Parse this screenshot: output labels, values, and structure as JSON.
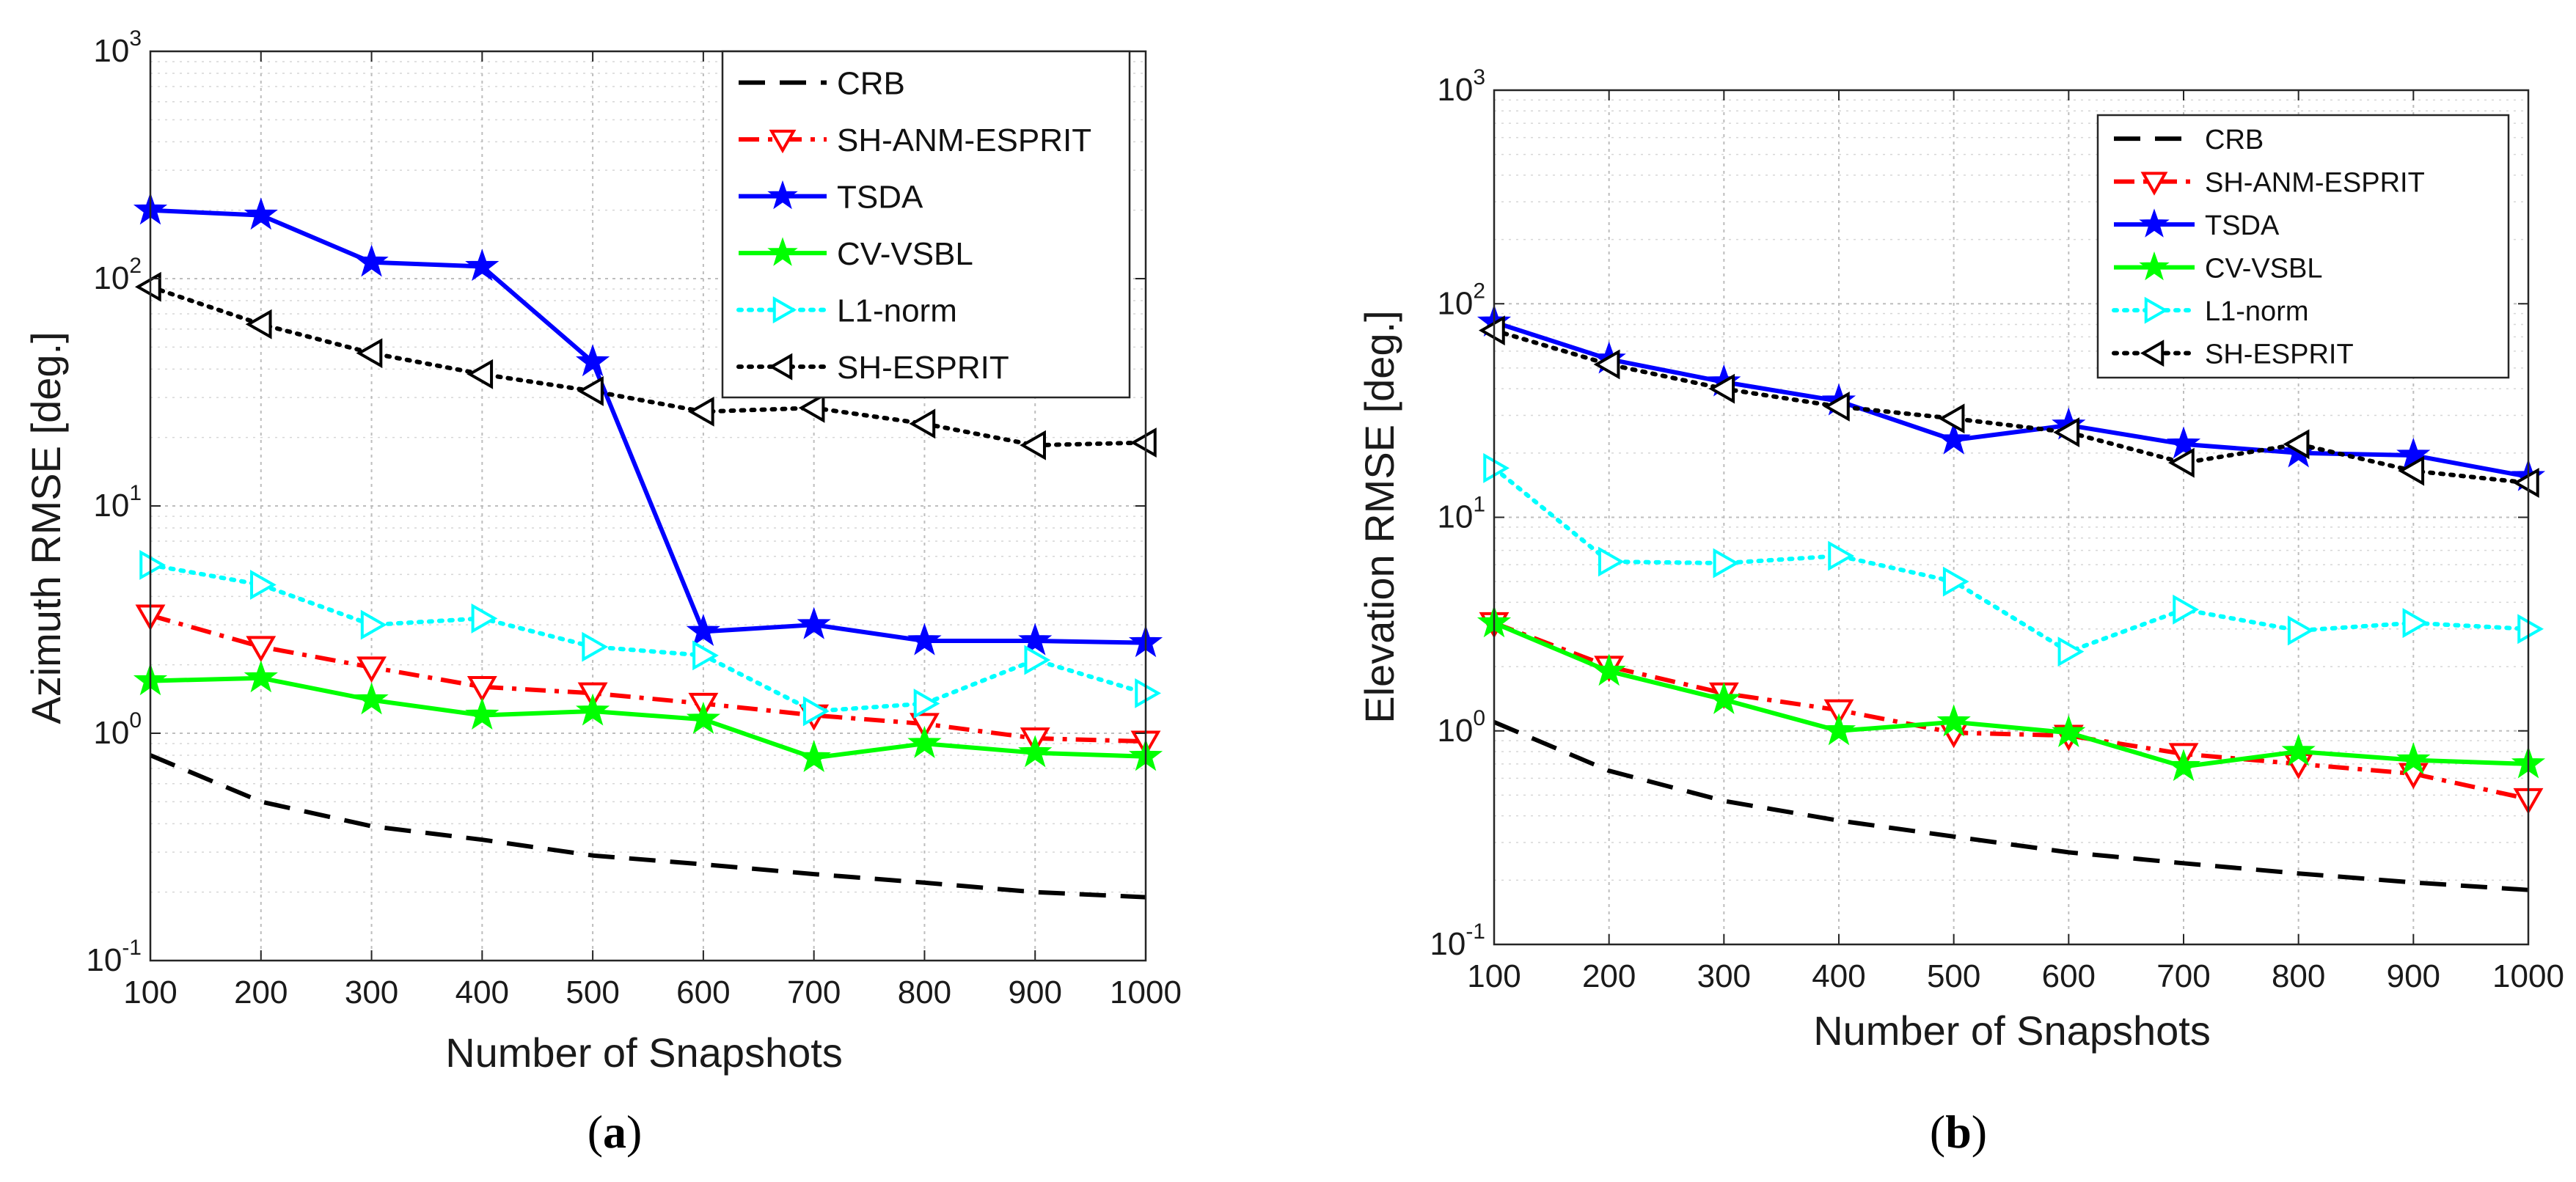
{
  "chart_data": [
    {
      "type": "line",
      "panel": "a",
      "caption": "a",
      "title": "",
      "xlabel": "Number of Snapshots",
      "ylabel": "Azimuth RMSE [deg.]",
      "yscale": "log",
      "xlim": [
        100,
        1000
      ],
      "ylim": [
        0.1,
        1000
      ],
      "xticks": [
        100,
        200,
        300,
        400,
        500,
        600,
        700,
        800,
        900,
        1000
      ],
      "yticks": [
        {
          "base": "10",
          "exp": "-1",
          "value": 0.1
        },
        {
          "base": "10",
          "exp": "0",
          "value": 1
        },
        {
          "base": "10",
          "exp": "1",
          "value": 10
        },
        {
          "base": "10",
          "exp": "2",
          "value": 100
        },
        {
          "base": "10",
          "exp": "3",
          "value": 1000
        }
      ],
      "grid": true,
      "legend_position": "top-right",
      "x": [
        100,
        200,
        300,
        400,
        500,
        600,
        700,
        800,
        900,
        1000
      ],
      "series": [
        {
          "name": "CRB",
          "color": "#000000",
          "style": "dashed",
          "marker": "none",
          "values": [
            0.8,
            0.5,
            0.39,
            0.34,
            0.29,
            0.265,
            0.24,
            0.22,
            0.2,
            0.19
          ]
        },
        {
          "name": "SH-ANM-ESPRIT",
          "color": "#ff0000",
          "style": "dashdot",
          "marker": "triangle-down",
          "values": [
            3.3,
            2.4,
            1.95,
            1.6,
            1.5,
            1.35,
            1.2,
            1.1,
            0.95,
            0.92
          ]
        },
        {
          "name": "TSDA",
          "color": "#0000ff",
          "style": "solid",
          "marker": "star",
          "values": [
            200,
            190,
            118,
            113,
            43,
            2.8,
            3.0,
            2.55,
            2.55,
            2.5
          ]
        },
        {
          "name": "CV-VSBL",
          "color": "#00ff00",
          "style": "solid",
          "marker": "star",
          "values": [
            1.7,
            1.75,
            1.4,
            1.2,
            1.25,
            1.15,
            0.78,
            0.9,
            0.82,
            0.79
          ]
        },
        {
          "name": "L1-norm",
          "color": "#00ffff",
          "style": "dotted",
          "marker": "triangle-right",
          "values": [
            5.5,
            4.5,
            3.0,
            3.2,
            2.4,
            2.2,
            1.25,
            1.35,
            2.1,
            1.5
          ]
        },
        {
          "name": "SH-ESPRIT",
          "color": "#000000",
          "style": "dotted",
          "marker": "triangle-left",
          "values": [
            92,
            63,
            47,
            38,
            32,
            26,
            27,
            23,
            18.5,
            19
          ]
        }
      ]
    },
    {
      "type": "line",
      "panel": "b",
      "caption": "b",
      "title": "",
      "xlabel": "Number of Snapshots",
      "ylabel": "Elevation RMSE [deg.]",
      "yscale": "log",
      "xlim": [
        100,
        1000
      ],
      "ylim": [
        0.1,
        1000
      ],
      "xticks": [
        100,
        200,
        300,
        400,
        500,
        600,
        700,
        800,
        900,
        1000
      ],
      "yticks": [
        {
          "base": "10",
          "exp": "-1",
          "value": 0.1
        },
        {
          "base": "10",
          "exp": "0",
          "value": 1
        },
        {
          "base": "10",
          "exp": "1",
          "value": 10
        },
        {
          "base": "10",
          "exp": "2",
          "value": 100
        },
        {
          "base": "10",
          "exp": "3",
          "value": 1000
        }
      ],
      "grid": true,
      "legend_position": "top-right",
      "x": [
        100,
        200,
        300,
        400,
        500,
        600,
        700,
        800,
        900,
        1000
      ],
      "series": [
        {
          "name": "CRB",
          "color": "#000000",
          "style": "dashed",
          "marker": "none",
          "values": [
            1.1,
            0.65,
            0.47,
            0.38,
            0.32,
            0.27,
            0.24,
            0.215,
            0.195,
            0.18
          ]
        },
        {
          "name": "SH-ANM-ESPRIT",
          "color": "#ff0000",
          "style": "dashdot",
          "marker": "triangle-down",
          "values": [
            3.2,
            2.0,
            1.5,
            1.25,
            0.98,
            0.95,
            0.78,
            0.7,
            0.63,
            0.48
          ]
        },
        {
          "name": "TSDA",
          "color": "#0000ff",
          "style": "solid",
          "marker": "star",
          "values": [
            82,
            55,
            43,
            35,
            23,
            27,
            22,
            20,
            19.5,
            15.5
          ]
        },
        {
          "name": "CV-VSBL",
          "color": "#00ff00",
          "style": "solid",
          "marker": "star",
          "values": [
            3.2,
            1.9,
            1.4,
            1.0,
            1.1,
            0.98,
            0.68,
            0.8,
            0.73,
            0.7
          ]
        },
        {
          "name": "L1-norm",
          "color": "#00ffff",
          "style": "dotted",
          "marker": "triangle-right",
          "values": [
            17,
            6.2,
            6.1,
            6.6,
            5.0,
            2.35,
            3.7,
            2.95,
            3.2,
            3.0
          ]
        },
        {
          "name": "SH-ESPRIT",
          "color": "#000000",
          "style": "dotted",
          "marker": "triangle-left",
          "values": [
            75,
            52,
            40,
            33,
            29,
            25,
            18,
            22,
            16.5,
            14.5
          ]
        }
      ]
    }
  ]
}
